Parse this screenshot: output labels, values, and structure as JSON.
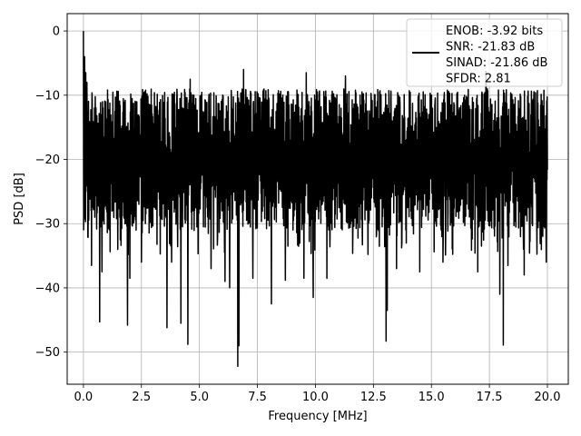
{
  "chart_data": {
    "type": "line",
    "title": "",
    "xlabel": "Frequency [MHz]",
    "ylabel": "PSD [dB]",
    "xlim": [
      -0.7,
      20.9
    ],
    "ylim": [
      -55,
      2.7
    ],
    "xticks": [
      0.0,
      2.5,
      5.0,
      7.5,
      10.0,
      12.5,
      15.0,
      17.5,
      20.0
    ],
    "xtick_labels": [
      "0.0",
      "2.5",
      "5.0",
      "7.5",
      "10.0",
      "12.5",
      "15.0",
      "17.5",
      "20.0"
    ],
    "yticks": [
      0,
      -10,
      -20,
      -30,
      -40,
      -50
    ],
    "ytick_labels": [
      "0",
      "−10",
      "−20",
      "−30",
      "−40",
      "−50"
    ],
    "grid": true,
    "legend_placement": "top-right",
    "legend": [
      "ENOB: -3.92 bits",
      "SNR: -21.83 dB",
      "SINAD: -21.86 dB",
      "SFDR: 2.81"
    ],
    "series": [
      {
        "color": "#000000",
        "x_start": 0.0,
        "x_end": 20.0,
        "n_points": 2000,
        "start_value": 0,
        "noise_band": [
          -31,
          -9
        ],
        "noise_mean": -20,
        "deep_minima": [
          {
            "x": 0.35,
            "y": -36.5
          },
          {
            "x": 0.7,
            "y": -45.3
          },
          {
            "x": 0.8,
            "y": -37.5
          },
          {
            "x": 1.9,
            "y": -45.8
          },
          {
            "x": 2.0,
            "y": -38.5
          },
          {
            "x": 2.5,
            "y": -36
          },
          {
            "x": 3.6,
            "y": -46.2
          },
          {
            "x": 3.8,
            "y": -36
          },
          {
            "x": 4.2,
            "y": -45.5
          },
          {
            "x": 4.5,
            "y": -48.8
          },
          {
            "x": 5.5,
            "y": -37
          },
          {
            "x": 6.1,
            "y": -39
          },
          {
            "x": 6.3,
            "y": -40
          },
          {
            "x": 6.65,
            "y": -52.2
          },
          {
            "x": 6.7,
            "y": -49
          },
          {
            "x": 7.3,
            "y": -38.5
          },
          {
            "x": 8.1,
            "y": -42.5
          },
          {
            "x": 8.7,
            "y": -38.8
          },
          {
            "x": 9.5,
            "y": -38.5
          },
          {
            "x": 9.9,
            "y": -41.5
          },
          {
            "x": 10.5,
            "y": -38.5
          },
          {
            "x": 13.05,
            "y": -48.3
          },
          {
            "x": 13.1,
            "y": -43.5
          },
          {
            "x": 13.5,
            "y": -37
          },
          {
            "x": 14.5,
            "y": -37.5
          },
          {
            "x": 15.5,
            "y": -36
          },
          {
            "x": 17.0,
            "y": -37.5
          },
          {
            "x": 17.95,
            "y": -41
          },
          {
            "x": 18.1,
            "y": -48.9
          },
          {
            "x": 18.3,
            "y": -36.5
          },
          {
            "x": 19.0,
            "y": -38
          },
          {
            "x": 19.95,
            "y": -36
          }
        ],
        "high_peaks": [
          {
            "x": 0.05,
            "y": -4
          },
          {
            "x": 0.1,
            "y": -6.5
          },
          {
            "x": 0.15,
            "y": -8
          },
          {
            "x": 4.6,
            "y": -7.5
          },
          {
            "x": 6.9,
            "y": -6
          },
          {
            "x": 9.6,
            "y": -6.5
          },
          {
            "x": 11.3,
            "y": -7
          },
          {
            "x": 17.35,
            "y": -6.3
          }
        ]
      }
    ]
  }
}
